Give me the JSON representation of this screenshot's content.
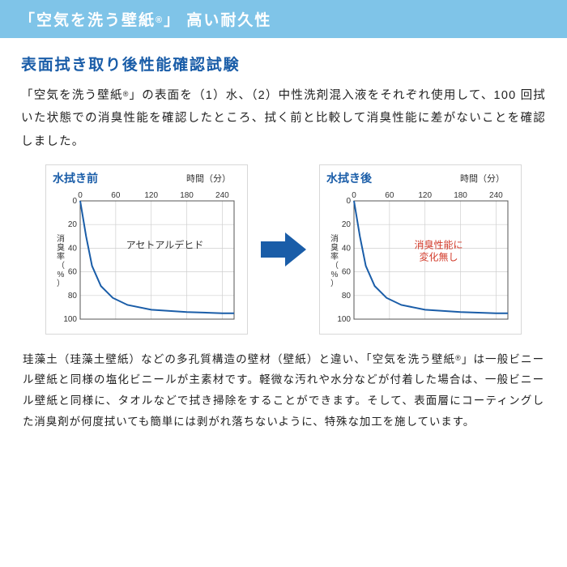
{
  "header": {
    "prefix": "「空気を洗う壁紙",
    "reg": "®",
    "suffix": "」 高い耐久性"
  },
  "section_title": "表面拭き取り後性能確認試験",
  "intro": {
    "p1a": "「空気を洗う壁紙",
    "reg": "®",
    "p1b": "」の表面を（1）水、（2）中性洗剤混入液をそれぞれ使用して、100 回拭いた状態での消臭性能を確認したところ、拭く前と比較して消臭性能に差がないことを確認しました。"
  },
  "chart_before": {
    "title": "水拭き前",
    "x_label": "時間（分）",
    "y_label": "消臭率（%）",
    "annotation": "アセトアルデヒド",
    "annotation_color": "#333333",
    "type": "line",
    "x_ticks": [
      0,
      60,
      120,
      180,
      240
    ],
    "y_ticks": [
      0,
      20,
      40,
      60,
      80,
      100
    ],
    "xlim": [
      0,
      260
    ],
    "ylim": [
      0,
      100
    ],
    "grid_color": "#cfcfcf",
    "axis_color": "#555555",
    "line_color": "#1a5da8",
    "line_width": 2,
    "background_color": "#ffffff",
    "tick_fontsize": 10,
    "data": [
      {
        "x": 0,
        "y": 0
      },
      {
        "x": 10,
        "y": 30
      },
      {
        "x": 20,
        "y": 55
      },
      {
        "x": 35,
        "y": 72
      },
      {
        "x": 55,
        "y": 82
      },
      {
        "x": 80,
        "y": 88
      },
      {
        "x": 120,
        "y": 92
      },
      {
        "x": 180,
        "y": 94
      },
      {
        "x": 240,
        "y": 95
      },
      {
        "x": 260,
        "y": 95
      }
    ]
  },
  "chart_after": {
    "title": "水拭き後",
    "x_label": "時間（分）",
    "y_label": "消臭率（%）",
    "annotation": "消臭性能に\n変化無し",
    "annotation_color": "#d23a2a",
    "type": "line",
    "x_ticks": [
      0,
      60,
      120,
      180,
      240
    ],
    "y_ticks": [
      0,
      20,
      40,
      60,
      80,
      100
    ],
    "xlim": [
      0,
      260
    ],
    "ylim": [
      0,
      100
    ],
    "grid_color": "#cfcfcf",
    "axis_color": "#555555",
    "line_color": "#1a5da8",
    "line_width": 2,
    "background_color": "#ffffff",
    "tick_fontsize": 10,
    "data": [
      {
        "x": 0,
        "y": 0
      },
      {
        "x": 10,
        "y": 30
      },
      {
        "x": 20,
        "y": 55
      },
      {
        "x": 35,
        "y": 72
      },
      {
        "x": 55,
        "y": 82
      },
      {
        "x": 80,
        "y": 88
      },
      {
        "x": 120,
        "y": 92
      },
      {
        "x": 180,
        "y": 94
      },
      {
        "x": 240,
        "y": 95
      },
      {
        "x": 260,
        "y": 95
      }
    ]
  },
  "arrow_color": "#1a5da8",
  "footer": {
    "a": "珪藻土（珪藻土壁紙）などの多孔質構造の壁材（壁紙）と違い、「空気を洗う壁紙",
    "reg": "®",
    "b": "」は一般ビニール壁紙と同様の塩化ビニールが主素材です。軽微な汚れや水分などが付着した場合は、一般ビニール壁紙と同様に、タオルなどで拭き掃除をすることができます。そして、表面層にコーティングした消臭剤が何度拭いても簡単には剥がれ落ちないように、特殊な加工を施しています。"
  }
}
